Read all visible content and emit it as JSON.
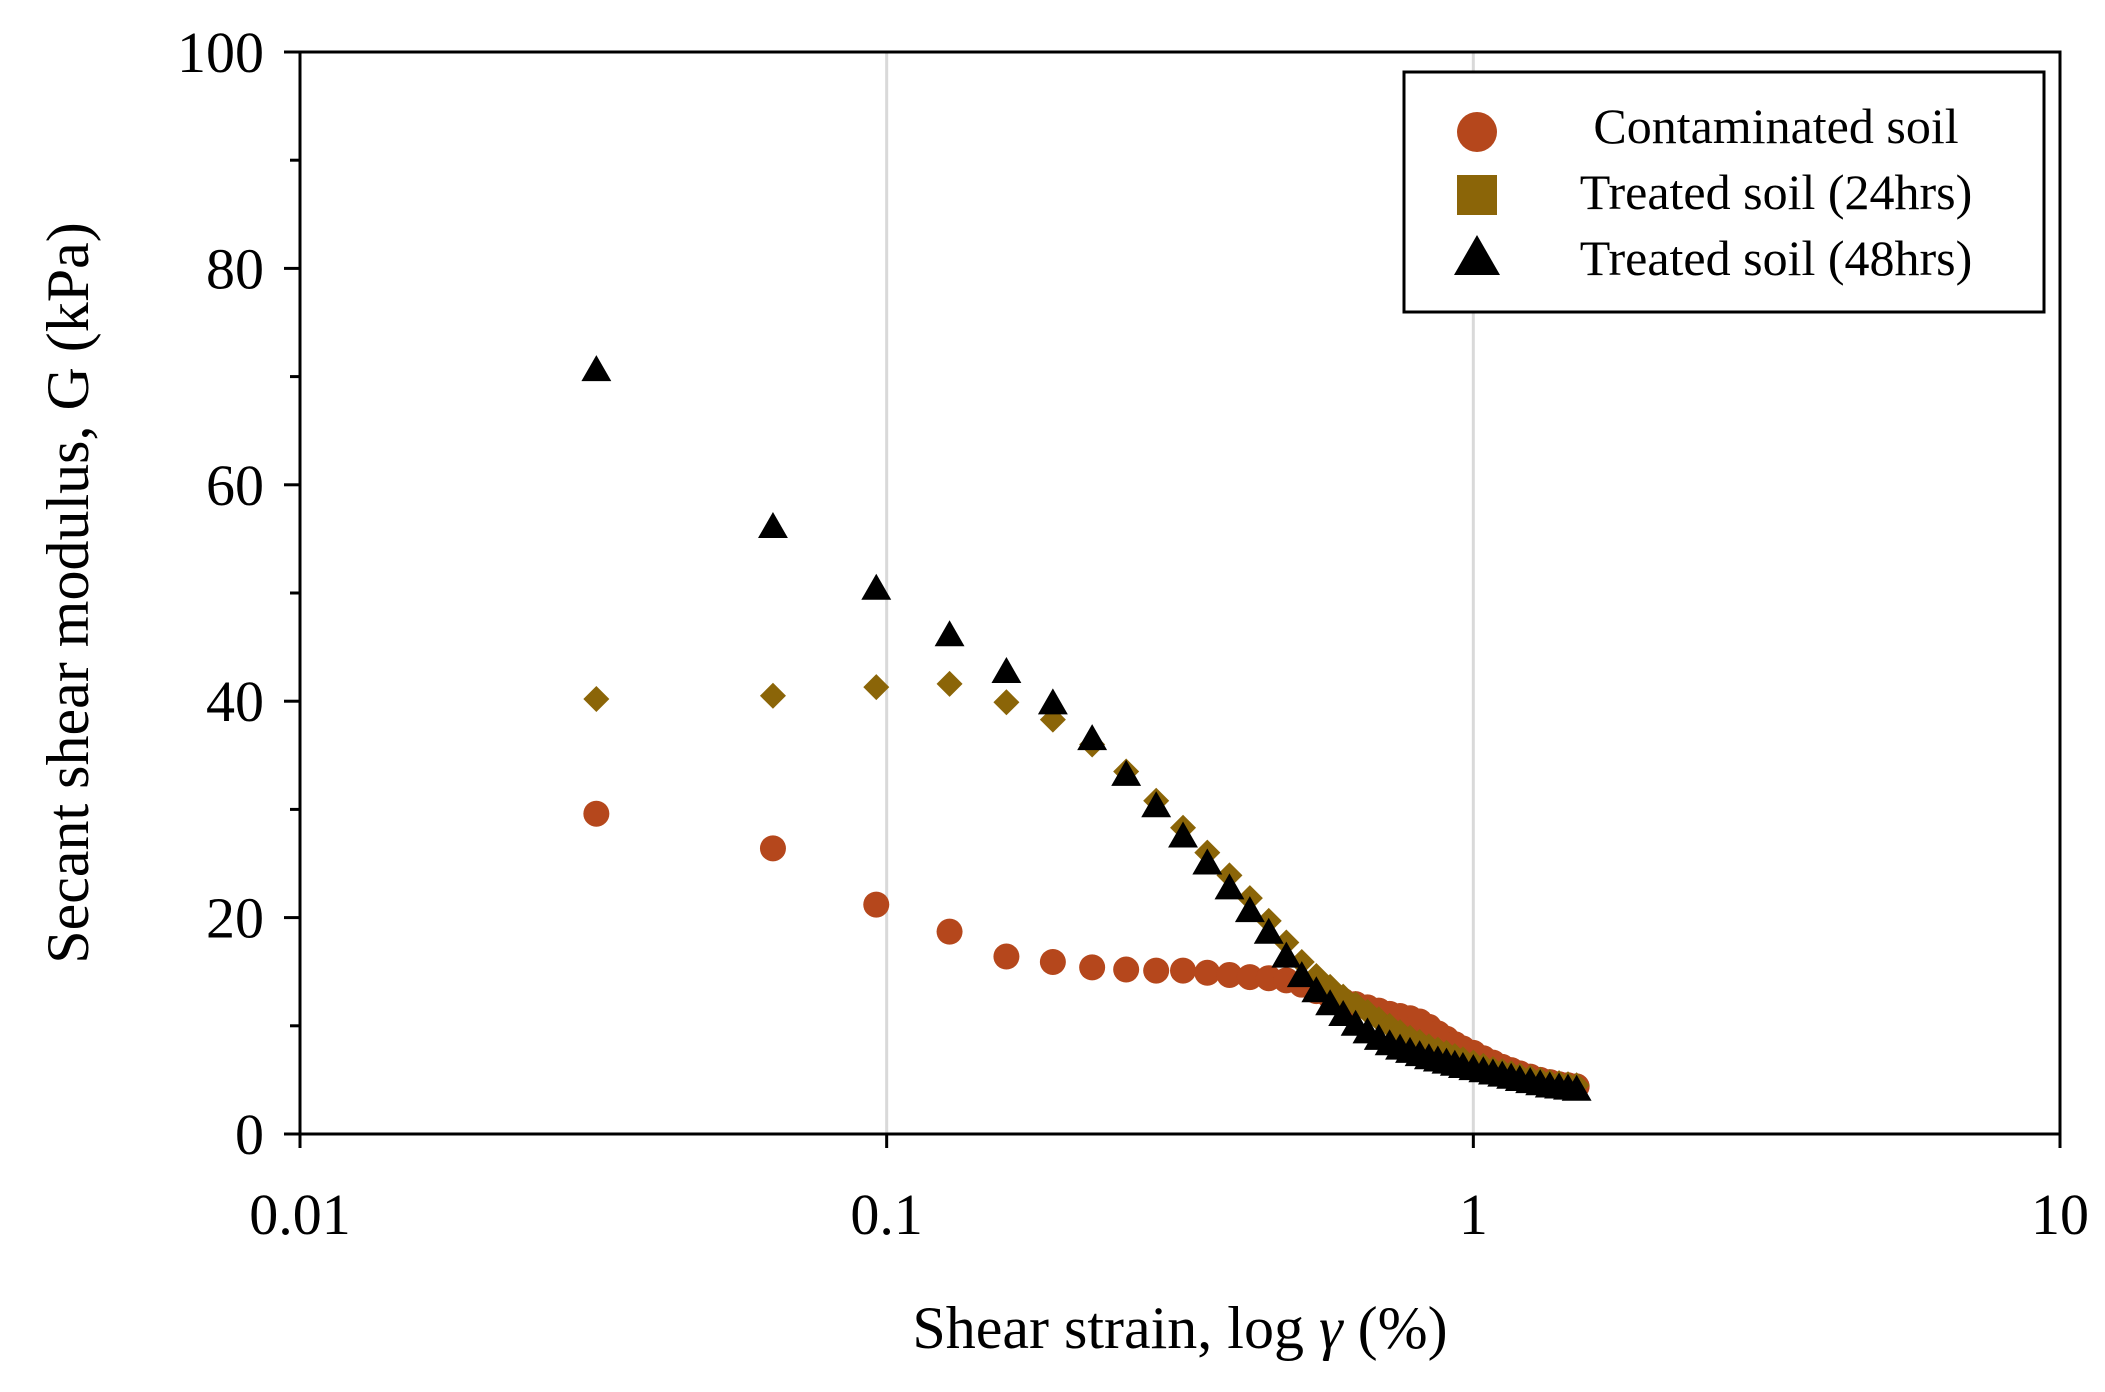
{
  "chart_data": {
    "type": "scatter",
    "title": "",
    "xlabel_main": "Shear strain, log ",
    "xlabel_symbol": "γ",
    "xlabel_unit": " (%)",
    "ylabel": "Secant shear modulus, G (kPa)",
    "x_scale": "log",
    "xlim": [
      0.01,
      10
    ],
    "ylim": [
      0,
      100
    ],
    "x_ticks": [
      0.01,
      0.1,
      1,
      10
    ],
    "x_tick_labels": [
      "0.01",
      "0.1",
      "1",
      "10"
    ],
    "y_ticks": [
      0,
      20,
      40,
      60,
      80,
      100
    ],
    "y_tick_labels": [
      "0",
      "20",
      "40",
      "60",
      "80",
      "100"
    ],
    "grid": "vertical major gridlines",
    "legend_position": "top-right",
    "series": [
      {
        "name": "Contaminated soil",
        "marker": "circle",
        "color": "#B5471C",
        "x": [
          0.032,
          0.064,
          0.096,
          0.128,
          0.16,
          0.192,
          0.224,
          0.256,
          0.288,
          0.32,
          0.352,
          0.384,
          0.416,
          0.448,
          0.48,
          0.51,
          0.54,
          0.57,
          0.6,
          0.63,
          0.66,
          0.69,
          0.72,
          0.75,
          0.78,
          0.81,
          0.84,
          0.87,
          0.9,
          0.93,
          0.96,
          1.0,
          1.04,
          1.08,
          1.12,
          1.16,
          1.2,
          1.25,
          1.3,
          1.35,
          1.4,
          1.45,
          1.5
        ],
        "y": [
          29.6,
          26.4,
          21.2,
          18.7,
          16.4,
          15.9,
          15.4,
          15.2,
          15.1,
          15.1,
          14.9,
          14.7,
          14.5,
          14.4,
          14.2,
          13.8,
          13.2,
          12.7,
          12.3,
          12.0,
          11.7,
          11.4,
          11.1,
          10.9,
          10.7,
          10.4,
          9.9,
          9.3,
          8.8,
          8.3,
          7.9,
          7.5,
          7.0,
          6.6,
          6.2,
          5.9,
          5.6,
          5.3,
          5.0,
          4.8,
          4.6,
          4.5,
          4.4
        ]
      },
      {
        "name": "Treated soil (24hrs)",
        "marker": "square",
        "plot_marker": "diamond",
        "color": "#8B6508",
        "x": [
          0.032,
          0.064,
          0.096,
          0.128,
          0.16,
          0.192,
          0.224,
          0.256,
          0.288,
          0.32,
          0.352,
          0.384,
          0.416,
          0.448,
          0.48,
          0.51,
          0.54,
          0.57,
          0.6,
          0.63,
          0.66,
          0.69,
          0.72,
          0.75,
          0.78,
          0.81,
          0.84,
          0.87,
          0.9,
          0.93,
          0.96,
          1.0,
          1.04,
          1.08,
          1.12,
          1.16,
          1.2,
          1.25,
          1.3,
          1.35,
          1.4,
          1.45,
          1.5
        ],
        "y": [
          40.2,
          40.5,
          41.3,
          41.6,
          39.9,
          38.3,
          36.0,
          33.5,
          30.8,
          28.3,
          26.0,
          23.9,
          21.8,
          19.7,
          17.7,
          15.9,
          14.6,
          13.6,
          12.7,
          12.0,
          11.3,
          10.6,
          10.0,
          9.4,
          8.9,
          8.5,
          8.1,
          7.8,
          7.5,
          7.2,
          6.9,
          6.6,
          6.3,
          6.0,
          5.8,
          5.6,
          5.4,
          5.2,
          5.0,
          4.8,
          4.7,
          4.6,
          4.5
        ]
      },
      {
        "name": "Treated soil (48hrs)",
        "marker": "triangle",
        "color": "#000000",
        "x": [
          0.032,
          0.064,
          0.096,
          0.128,
          0.16,
          0.192,
          0.224,
          0.256,
          0.288,
          0.32,
          0.352,
          0.384,
          0.416,
          0.448,
          0.48,
          0.51,
          0.54,
          0.57,
          0.6,
          0.63,
          0.66,
          0.69,
          0.72,
          0.75,
          0.78,
          0.81,
          0.84,
          0.87,
          0.9,
          0.93,
          0.96,
          1.0,
          1.04,
          1.08,
          1.12,
          1.16,
          1.2,
          1.25,
          1.3,
          1.35,
          1.4,
          1.45,
          1.5
        ],
        "y": [
          70.6,
          56.1,
          50.4,
          46.1,
          42.7,
          39.8,
          36.5,
          33.2,
          30.3,
          27.5,
          25.0,
          22.7,
          20.6,
          18.6,
          16.4,
          14.6,
          13.2,
          12.0,
          11.0,
          10.1,
          9.4,
          8.8,
          8.3,
          7.9,
          7.6,
          7.3,
          7.0,
          6.8,
          6.6,
          6.4,
          6.2,
          6.0,
          5.8,
          5.6,
          5.4,
          5.2,
          5.0,
          4.8,
          4.6,
          4.4,
          4.3,
          4.2,
          4.1
        ]
      }
    ]
  }
}
